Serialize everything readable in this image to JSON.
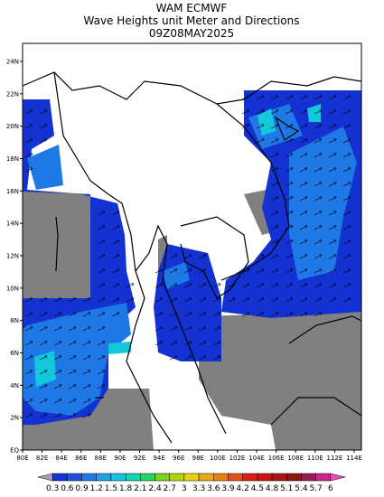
{
  "header": {
    "title": "WAM ECMWF",
    "subtitle": "Wave Heights unit Meter and Directions",
    "time": "09Z08MAY2025"
  },
  "map": {
    "lat_labels": [
      "EQ",
      "2N",
      "4N",
      "6N",
      "8N",
      "10N",
      "12N",
      "14N",
      "16N",
      "18N",
      "20N",
      "22N",
      "24N"
    ],
    "lon_labels": [
      "80E",
      "82E",
      "84E",
      "86E",
      "88E",
      "90E",
      "92E",
      "94E",
      "96E",
      "98E",
      "100E",
      "102E",
      "104E",
      "106E",
      "108E",
      "110E",
      "112E",
      "114E"
    ]
  },
  "legend": {
    "labels": [
      "0.3",
      "0.6",
      "0.9",
      "1.2",
      "1.5",
      "1.8",
      "2.1",
      "2.4",
      "2.7",
      "3",
      "3.3",
      "3.6",
      "3.9",
      "4.2",
      "4.5",
      "4.8",
      "5.1",
      "5.4",
      "5.7",
      "6"
    ],
    "colors": [
      "#a89cc0",
      "#1432d2",
      "#1e50dc",
      "#1e78e6",
      "#1ea0e6",
      "#14c8dc",
      "#14d2b4",
      "#28d264",
      "#78d228",
      "#b4d214",
      "#e6d214",
      "#e6aa14",
      "#e68214",
      "#e65014",
      "#dc1e14",
      "#c81414",
      "#aa1414",
      "#8c1414",
      "#961e50",
      "#c8288c",
      "#e650b4"
    ]
  }
}
